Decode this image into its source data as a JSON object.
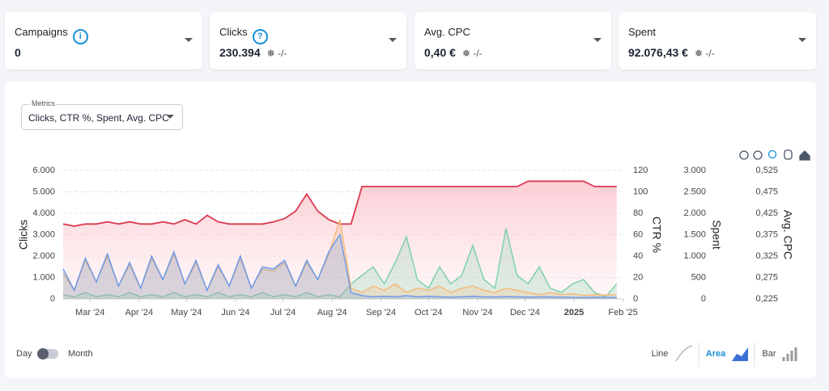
{
  "cards": [
    {
      "title": "Campaigns",
      "value": "0"
    },
    {
      "title": "Clicks",
      "value": "230.394",
      "delta": "-/-"
    },
    {
      "title": "Avg. CPC",
      "value": "0,40 €",
      "delta": "-/-"
    },
    {
      "title": "Spent",
      "value": "92.076,43 €",
      "delta": "-/-"
    }
  ],
  "metrics": {
    "label": "Metrics",
    "value": "Clicks, CTR %, Spent, Avg. CPC"
  },
  "chart_data": {
    "type": "area",
    "ylabel": "Clicks",
    "y2label": "CTR %",
    "y3label": "Spent",
    "y4label": "Avg. CPC",
    "xlim": [
      0,
      50.6
    ],
    "xticks": [
      {
        "value": 2.43,
        "label": "Mar '24"
      },
      {
        "value": 6.86,
        "label": "Apr '24"
      },
      {
        "value": 11.14,
        "label": "May '24"
      },
      {
        "value": 15.57,
        "label": "Jun '24"
      },
      {
        "value": 19.86,
        "label": "Jul '24"
      },
      {
        "value": 24.29,
        "label": "Aug '24"
      },
      {
        "value": 28.71,
        "label": "Sep '24"
      },
      {
        "value": 33,
        "label": "Oct '24"
      },
      {
        "value": 37.43,
        "label": "Nov '24"
      },
      {
        "value": 41.71,
        "label": "Dec '24"
      },
      {
        "value": 46.14,
        "label": "2025"
      },
      {
        "value": 50.57,
        "label": "Feb '25"
      }
    ],
    "ylim": [
      0,
      6000
    ],
    "yticks": [
      0,
      {
        "value": 1000,
        "label": "1.000"
      },
      {
        "value": 2000,
        "label": "2.000"
      },
      {
        "value": 3000,
        "label": "3.000"
      },
      {
        "value": 4000,
        "label": "4.000"
      },
      {
        "value": 5000,
        "label": "5.000"
      },
      {
        "value": 6000,
        "label": "6.000"
      }
    ],
    "y2lim": [
      0,
      120
    ],
    "y2ticks": [
      0,
      20,
      40,
      60,
      80,
      100,
      120
    ],
    "y3lim": [
      0,
      3000
    ],
    "y3ticks": [
      0,
      500,
      {
        "value": 1000,
        "label": "1.000"
      },
      {
        "value": 1500,
        "label": "1.500"
      },
      {
        "value": 2000,
        "label": "2.000"
      },
      {
        "value": 2500,
        "label": "2.500"
      },
      {
        "value": 3000,
        "label": "3.000"
      }
    ],
    "y4lim": [
      0.225,
      0.525
    ],
    "y4ticks": [
      {
        "value": 0.225,
        "label": "0,225"
      },
      {
        "value": 0.275,
        "label": "0,275"
      },
      {
        "value": 0.325,
        "label": "0,325"
      },
      {
        "value": 0.375,
        "label": "0,375"
      },
      {
        "value": 0.425,
        "label": "0,425"
      },
      {
        "value": 0.475,
        "label": "0,475"
      },
      {
        "value": 0.525,
        "label": "0,525"
      }
    ],
    "grid": true,
    "series": [
      {
        "name": "CTR %",
        "axis": "y2",
        "color": "#dc3b50",
        "values": [
          70,
          68,
          70,
          70,
          72,
          70,
          72,
          70,
          70,
          72,
          70,
          74,
          70,
          78,
          72,
          70,
          70,
          70,
          70,
          72,
          75,
          82,
          98,
          82,
          74,
          70,
          70,
          105,
          105,
          105,
          105,
          105,
          105,
          105,
          105,
          105,
          105,
          105,
          105,
          105,
          105,
          105,
          110,
          110,
          110,
          110,
          110,
          110,
          105,
          105,
          105
        ]
      },
      {
        "name": "Avg. CPC",
        "axis": "y4",
        "color": "#7fd1a8",
        "values": [
          0.235,
          0.23,
          0.24,
          0.23,
          0.235,
          0.23,
          0.24,
          0.23,
          0.235,
          0.23,
          0.24,
          0.23,
          0.235,
          0.23,
          0.24,
          0.23,
          0.235,
          0.23,
          0.24,
          0.23,
          0.235,
          0.23,
          0.24,
          0.23,
          0.235,
          0.23,
          0.26,
          0.28,
          0.3,
          0.26,
          0.31,
          0.37,
          0.27,
          0.25,
          0.3,
          0.26,
          0.28,
          0.35,
          0.27,
          0.25,
          0.39,
          0.28,
          0.26,
          0.3,
          0.25,
          0.24,
          0.26,
          0.27,
          0.24,
          0.23,
          0.26
        ]
      },
      {
        "name": "Spent",
        "axis": "y3",
        "color": "#f5b97a",
        "values": [
          600,
          200,
          900,
          400,
          1000,
          300,
          800,
          250,
          950,
          450,
          1050,
          350,
          850,
          200,
          750,
          300,
          950,
          250,
          700,
          650,
          850,
          300,
          850,
          450,
          1050,
          1850,
          250,
          150,
          300,
          200,
          350,
          150,
          250,
          200,
          300,
          150,
          250,
          300,
          200,
          150,
          250,
          200,
          150,
          100,
          150,
          100,
          120,
          80,
          100,
          90,
          100
        ]
      },
      {
        "name": "Clicks",
        "axis": "y",
        "color": "#6f9be8",
        "values": [
          1400,
          400,
          1900,
          800,
          2100,
          600,
          1700,
          500,
          2000,
          900,
          2200,
          700,
          1800,
          400,
          1600,
          600,
          2000,
          500,
          1500,
          1400,
          1800,
          600,
          1800,
          900,
          2200,
          3000,
          300,
          150,
          100,
          120,
          100,
          150,
          100,
          120,
          100,
          80,
          100,
          120,
          100,
          90,
          110,
          100,
          80,
          100,
          90,
          80,
          70,
          60,
          80,
          70,
          60
        ]
      }
    ]
  },
  "toggle": {
    "left": "Day",
    "right": "Month"
  },
  "chart_types": [
    {
      "label": "Line"
    },
    {
      "label": "Area",
      "active": true
    },
    {
      "label": "Bar"
    }
  ]
}
